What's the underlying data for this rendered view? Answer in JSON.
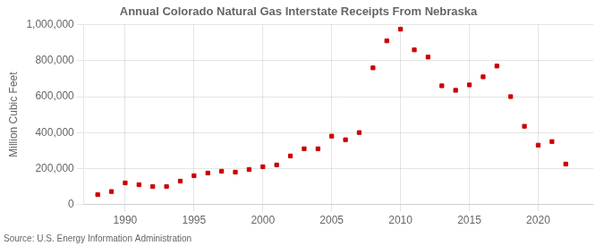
{
  "chart_data": {
    "type": "scatter",
    "title": "Annual Colorado Natural Gas Interstate Receipts From Nebraska",
    "ylabel": "Million Cubic Feet",
    "annotation": "Source: U.S. Energy Information Administration",
    "x": [
      1988,
      1989,
      1990,
      1991,
      1992,
      1993,
      1994,
      1995,
      1996,
      1997,
      1998,
      1999,
      2000,
      2001,
      2002,
      2003,
      2004,
      2005,
      2006,
      2007,
      2008,
      2009,
      2010,
      2011,
      2012,
      2013,
      2014,
      2015,
      2016,
      2017,
      2018,
      2019,
      2020,
      2021,
      2022
    ],
    "values": [
      55000,
      72000,
      120000,
      110000,
      100000,
      100000,
      130000,
      160000,
      175000,
      185000,
      180000,
      195000,
      210000,
      220000,
      270000,
      310000,
      310000,
      380000,
      360000,
      400000,
      760000,
      910000,
      975000,
      860000,
      820000,
      660000,
      635000,
      665000,
      710000,
      770000,
      600000,
      435000,
      330000,
      350000,
      225000
    ],
    "color": "#cc0000",
    "marker": "square",
    "xlim": [
      1987,
      2024
    ],
    "xticks": [
      1990,
      1995,
      2000,
      2005,
      2010,
      2015,
      2020
    ],
    "ylim": [
      0,
      1000000
    ],
    "yticks": [
      0,
      {
        "value": 200000,
        "label": "200,000"
      },
      {
        "value": 400000,
        "label": "400,000"
      },
      {
        "value": 600000,
        "label": "600,000"
      },
      {
        "value": 800000,
        "label": "800,000"
      },
      {
        "value": 1000000,
        "label": "1,000,000"
      }
    ],
    "grid": true
  }
}
